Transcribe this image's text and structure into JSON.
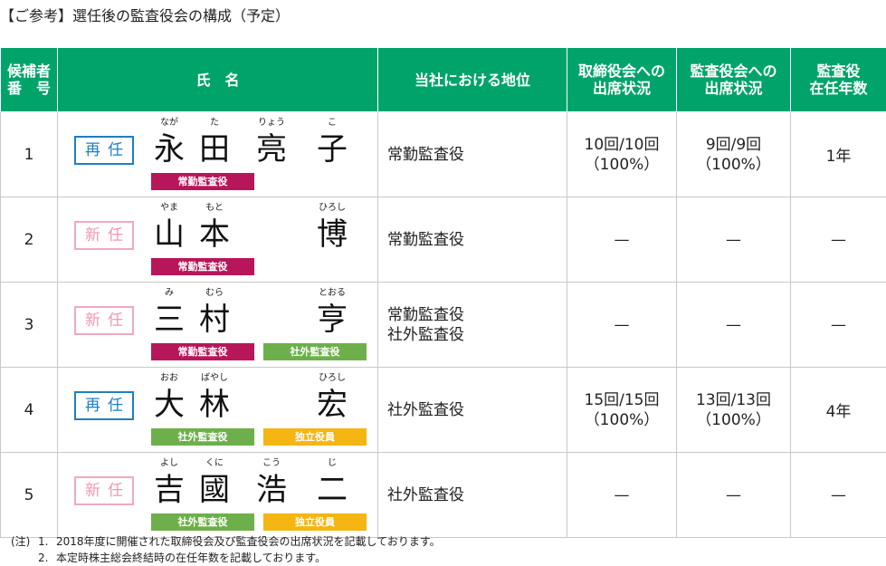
{
  "title": "【ご参考】選任後の監査役会の構成（予定）",
  "headers": {
    "number": [
      "候補者",
      "番　号"
    ],
    "name": "氏　名",
    "position": "当社における地位",
    "board_attendance": [
      "取締役会への",
      "出席状況"
    ],
    "audit_attendance": [
      "監査役会への",
      "出席状況"
    ],
    "tenure": [
      "監査役",
      "在任年数"
    ]
  },
  "rows": [
    {
      "number": "1",
      "status": "再任",
      "status_type": "reelect",
      "chars": [
        "永",
        "田",
        "亮",
        "子"
      ],
      "kana": [
        "なが",
        "た",
        "りょう",
        "こ"
      ],
      "tags": [
        {
          "label": "常勤監査役",
          "type": "full-time"
        }
      ],
      "positions": [
        "常勤監査役"
      ],
      "board_attendance": [
        "10回/10回",
        "（100%）"
      ],
      "audit_attendance": [
        "9回/9回",
        "（100%）"
      ],
      "tenure": "1年"
    },
    {
      "number": "2",
      "status": "新任",
      "status_type": "new",
      "chars": [
        "山",
        "本",
        "",
        "博"
      ],
      "kana": [
        "やま",
        "もと",
        "",
        "ひろし"
      ],
      "tags": [
        {
          "label": "常勤監査役",
          "type": "full-time"
        }
      ],
      "positions": [
        "常勤監査役"
      ],
      "board_attendance": [
        "—"
      ],
      "audit_attendance": [
        "—"
      ],
      "tenure": "—"
    },
    {
      "number": "3",
      "status": "新任",
      "status_type": "new",
      "chars": [
        "三",
        "村",
        "",
        "亨"
      ],
      "kana": [
        "み",
        "むら",
        "",
        "とおる"
      ],
      "tags": [
        {
          "label": "常勤監査役",
          "type": "full-time"
        },
        {
          "label": "社外監査役",
          "type": "outside"
        }
      ],
      "positions": [
        "常勤監査役",
        "社外監査役"
      ],
      "board_attendance": [
        "—"
      ],
      "audit_attendance": [
        "—"
      ],
      "tenure": "—"
    },
    {
      "number": "4",
      "status": "再任",
      "status_type": "reelect",
      "chars": [
        "大",
        "林",
        "",
        "宏"
      ],
      "kana": [
        "おお",
        "ばやし",
        "",
        "ひろし"
      ],
      "tags": [
        {
          "label": "社外監査役",
          "type": "outside"
        },
        {
          "label": "独立役員",
          "type": "independent"
        }
      ],
      "positions": [
        "社外監査役"
      ],
      "board_attendance": [
        "15回/15回",
        "（100%）"
      ],
      "audit_attendance": [
        "13回/13回",
        "（100%）"
      ],
      "tenure": "4年"
    },
    {
      "number": "5",
      "status": "新任",
      "status_type": "new",
      "chars": [
        "吉",
        "國",
        "浩",
        "二"
      ],
      "kana": [
        "よし",
        "くに",
        "こう",
        "じ"
      ],
      "tags": [
        {
          "label": "社外監査役",
          "type": "outside"
        },
        {
          "label": "独立役員",
          "type": "independent"
        }
      ],
      "positions": [
        "社外監査役"
      ],
      "board_attendance": [
        "—"
      ],
      "audit_attendance": [
        "—"
      ],
      "tenure": "—"
    }
  ],
  "notes": {
    "prefix": "(注)",
    "items": [
      {
        "num": "1.",
        "text": "2018年度に開催された取締役会及び監査役会の出席状況を記載しております。"
      },
      {
        "num": "2.",
        "text": "本定時株主総会終結時の在任年数を記載しております。"
      }
    ]
  },
  "colors": {
    "header_bg": "#00a46a",
    "reelect": "#1e7fc3",
    "new": "#ef98b2",
    "tag_full_time": "#b8165a",
    "tag_outside": "#6db04b",
    "tag_independent": "#f5b513"
  }
}
